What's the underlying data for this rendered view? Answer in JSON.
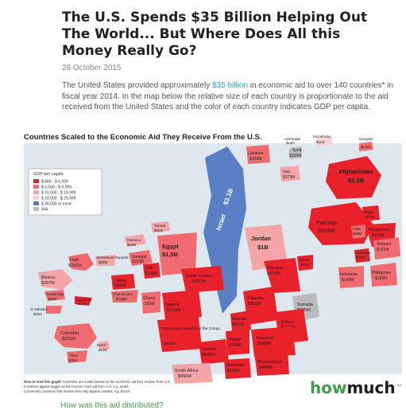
{
  "article": {
    "title_line1": "The U.S. Spends $35 Billion Helping Out",
    "title_line2": "The World... But Where Does All this",
    "title_line3": "Money Really Go?",
    "date": "28 October 2015",
    "intro_before_link": "The United States provided approximately ",
    "intro_link": "$35 billion",
    "intro_after_link": " in economic aid to over 140 countries* in fiscal year 2014. In the map below the relative size of each country is proportionate to the aid received from the United States and the color of each country indicates GDP per capita.",
    "bottom_link": "How was this aid distributed?"
  },
  "infographic": {
    "title": "Countries Scaled to the Economic Aid They Receive From the U.S.",
    "legend": {
      "title": "GDP per capita",
      "items": [
        {
          "label": "$ 866   - $ 4,999",
          "color": "#e8212b"
        },
        {
          "label": "$ 5,000  - $ 9,999",
          "color": "#ef6b70"
        },
        {
          "label": "$ 10,000 - $ 19,999",
          "color": "#f3a5a8"
        },
        {
          "label": "$ 20,000 - $ 29,999",
          "color": "#f8d2d3"
        },
        {
          "label": "$ 30,000 or more",
          "color": "#5b7fc4"
        },
        {
          "label": "N/A",
          "color": "#bbbbbb"
        }
      ]
    },
    "countries": {
      "afghanistan": {
        "name": "Afghanistan",
        "value": "$1.1B"
      },
      "israel": {
        "name": "Israel",
        "value": "$3.1B"
      },
      "jordan": {
        "name": "Jordan",
        "value": "$1B"
      },
      "egypt": {
        "name": "Egypt",
        "value": "$1,5B"
      },
      "pakistan": {
        "name": "Pakistan",
        "value": "$933M"
      },
      "lebanon": {
        "name": "Lebanon",
        "value": "$156M"
      },
      "iraq": {
        "name": "Iraq",
        "value": "$373M"
      },
      "syria": {
        "name": "Syria",
        "value": "$155M"
      },
      "ethiopia": {
        "name": "Ethiopia",
        "value": "$478M"
      },
      "south_sudan": {
        "name": "South Sudan",
        "value": "$287M"
      },
      "kenya": {
        "name": "Kenya",
        "value": "$560M"
      },
      "uganda": {
        "name": "Uganda",
        "value": "$469M"
      },
      "tanzania": {
        "name": "Tanzania",
        "value": "$588M"
      },
      "mozambique": {
        "name": "Mozambique",
        "value": "$406M"
      },
      "zambia": {
        "name": "Zambia",
        "value": "$406M"
      },
      "south_africa": {
        "name": "South Africa",
        "value": "$490M"
      },
      "nigeria": {
        "name": "Nigeria",
        "value": "$703M"
      },
      "drc": {
        "name": "Democratic Republic of the Congo",
        "value": "$272M"
      },
      "malawi": {
        "name": "Malawi",
        "value": "$194M"
      },
      "rwanda": {
        "name": "Rwanda",
        "value": "$197M"
      },
      "zimbabwe": {
        "name": "Zimbabwe",
        "value": "$159M"
      },
      "somalia": {
        "name": "Somalia",
        "value": "$235M"
      },
      "yemen": {
        "name": "Yemen",
        "value": "$82M"
      },
      "haiti": {
        "name": "Haiti",
        "value": "$291M"
      },
      "colombia": {
        "name": "Colombia",
        "value": "$325M"
      },
      "mexico": {
        "name": "Mexico",
        "value": "$207M"
      },
      "senegal": {
        "name": "Senegal",
        "value": "$116M"
      },
      "liberia": {
        "name": "Liberia",
        "value": "$158M"
      },
      "morocco": {
        "name": "Morocco",
        "value": "$34M"
      },
      "tunisia": {
        "name": "Tunisia",
        "value": "$63M"
      },
      "bangladesh": {
        "name": "Bangladesh",
        "value": "$203M"
      },
      "nepal": {
        "name": "Nepal",
        "value": "$81M"
      },
      "india": {
        "name": "India",
        "value": "$99M"
      },
      "philippines": {
        "name": "Philippines",
        "value": "$169M"
      },
      "indonesia": {
        "name": "Indonesia",
        "value": "$143M"
      },
      "vietnam": {
        "name": "Vietnam",
        "value": "$121M"
      },
      "cambodia": {
        "name": "Cambodia",
        "value": "$74M"
      },
      "mongolia": {
        "name": "Mongolia",
        "value": "$5.5M"
      },
      "kazakhstan": {
        "name": "Kazakhstan",
        "value": "$11M"
      },
      "azerbaijan": {
        "name": "Azerbaijan",
        "value": "$14M"
      },
      "ghana": {
        "name": "Ghana",
        "value": "155M"
      },
      "cote_divoire": {
        "name": "Cote d'Ivoire",
        "value": "$120M"
      },
      "mali": {
        "name": "Mali",
        "value": "$118M"
      },
      "guatemala": {
        "name": "Guatemala",
        "value": "$68M"
      },
      "honduras": {
        "name": "Honduras",
        "value": "$42M"
      },
      "dominican_republic": {
        "name": "Dominican Republic",
        "value": "$25M"
      },
      "el_salvador": {
        "name": "El Salvador",
        "value": "$22M"
      },
      "peru": {
        "name": "Peru",
        "value": "$75M"
      },
      "brazil": {
        "name": "Brazil",
        "value": "$14M"
      }
    },
    "footnote_bold": "How to read this graph:",
    "footnote_rest": " Countries are scaled based on the economic aid they receive from U.S.",
    "footnote_line2": "Countries appear bigger as the receive more aid from U.S. e.g. Israel.",
    "footnote_line3": "Conversely countries that receive less help appear smaller, e.g. Brazil.",
    "brand_how": "how",
    "brand_much": "much",
    "brand_suffix": ".net"
  }
}
